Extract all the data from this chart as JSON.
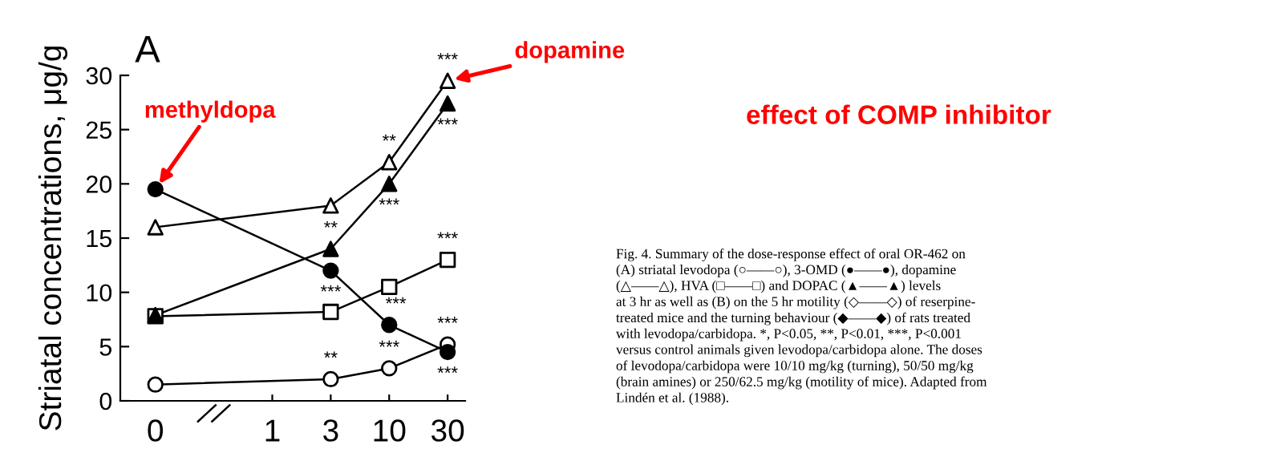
{
  "chart_data": {
    "type": "line",
    "ylabel": "Striatal concentrations, μg/g",
    "categories": [
      "0",
      null,
      "1",
      "3",
      "10",
      "30"
    ],
    "ylim": [
      0,
      30
    ],
    "yticks": [
      0,
      5,
      10,
      15,
      20,
      25,
      30
    ],
    "grid": false,
    "legend": false,
    "line_style": "solid",
    "series": [
      {
        "color": "#000000",
        "marker": "circle",
        "colors": [
          "#ffffff",
          "#ffffff",
          "#ffffff",
          "#ffffff",
          "#ffffff",
          "#ffffff"
        ],
        "values": [
          1.5,
          null,
          null,
          2.0,
          3.0,
          5.2
        ]
      },
      {
        "color": "#000000",
        "marker": "circle",
        "colors": [
          "#000000",
          "#000000",
          "#000000",
          "#000000",
          "#000000",
          "#000000"
        ],
        "values": [
          19.5,
          null,
          null,
          12.0,
          7.0,
          4.5
        ]
      },
      {
        "color": "#000000",
        "marker": "triangle",
        "colors": [
          "#ffffff",
          "#ffffff",
          "#ffffff",
          "#ffffff",
          "#ffffff",
          "#ffffff"
        ],
        "values": [
          16.0,
          null,
          null,
          18.0,
          22.0,
          29.5
        ]
      },
      {
        "color": "#000000",
        "marker": "square",
        "colors": [
          "#ffffff",
          "#ffffff",
          "#ffffff",
          "#ffffff",
          "#ffffff",
          "#ffffff"
        ],
        "values": [
          7.8,
          null,
          null,
          8.2,
          10.5,
          13.0
        ]
      },
      {
        "color": "#000000",
        "marker": "triangle",
        "colors": [
          "#000000",
          "#000000",
          "#000000",
          "#000000",
          "#000000",
          "#000000"
        ],
        "values": [
          7.9,
          null,
          null,
          14.0,
          20.0,
          27.4
        ]
      }
    ],
    "annotations": [
      "A",
      "effect of COMP inhibitor",
      "Fig. 4. Summary of the dose-response effect of oral OR-462 on\n(A) striatal levodopa (○——○), 3-OMD (●——●), dopamine\n(△——△), HVA (□——□) and DOPAC (▲——▲) levels\nat 3 hr as well as (B) on the 5 hr motility (◇——◇) of reserpine-\ntreated mice and the turning behaviour (◆——◆) of rats treated\nwith levodopa/carbidopa. *, P<0.05, **, P<0.01, ***, P<0.001\nversus control animals given levodopa/carbidopa alone. The doses\nof levodopa/carbidopa were 10/10 mg/kg (turning), 50/50 mg/kg\n(brain amines) or 250/62.5 mg/kg (motility of mice). Adapted from\nLindén et al. (1988).",
      {
        "text": "methyldopa",
        "x": "0",
        "y": 19.5
      },
      {
        "text": "dopamine",
        "x": "30",
        "y": 29.5
      },
      {
        "text": "**",
        "x": "3",
        "y": 2.0
      },
      {
        "text": "***",
        "x": "10",
        "y": 3.0
      },
      {
        "text": "***",
        "x": "30",
        "y": 5.2
      },
      {
        "text": "***",
        "x": "30",
        "y": 4.5
      },
      {
        "text": "***",
        "x": "3",
        "y": 12.0
      },
      {
        "text": "***",
        "x": "10",
        "y": 7.0
      },
      {
        "text": "**",
        "x": "3",
        "y": 14.0
      },
      {
        "text": "**",
        "x": "10",
        "y": 22.0
      },
      {
        "text": "***",
        "x": "10",
        "y": 20.0
      },
      {
        "text": "***",
        "x": "30",
        "y": 29.5
      },
      {
        "text": "***",
        "x": "30",
        "y": 27.4
      },
      {
        "text": "***",
        "x": "30",
        "y": 13.0
      }
    ]
  }
}
